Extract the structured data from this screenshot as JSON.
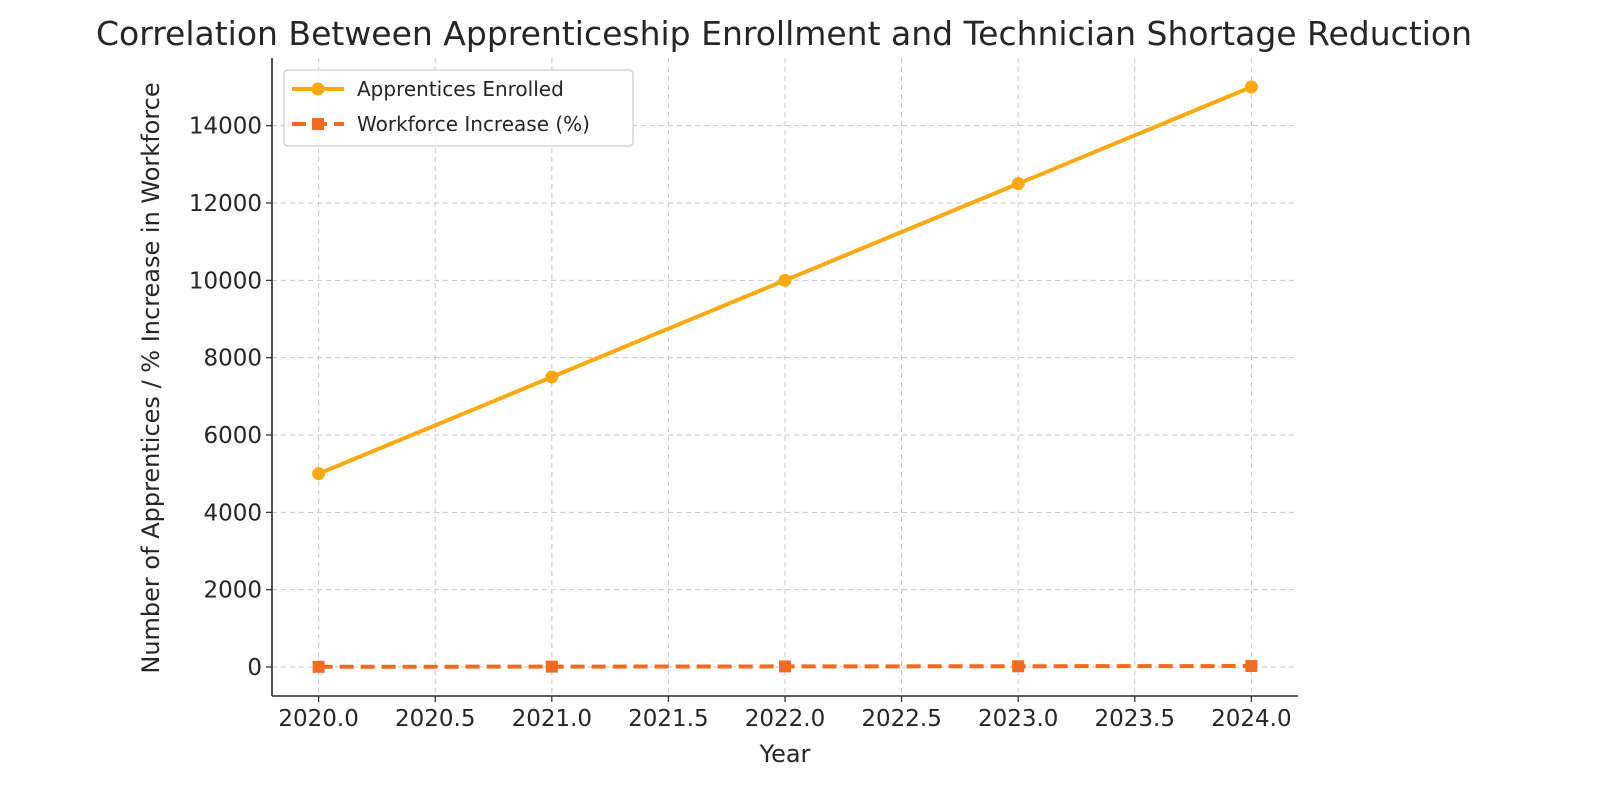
{
  "chart_data": {
    "type": "line",
    "title": "Correlation Between Apprenticeship Enrollment and Technician Shortage Reduction",
    "xlabel": "Year",
    "ylabel": "Number of Apprentices / % Increase in Workforce",
    "x": [
      2020,
      2021,
      2022,
      2023,
      2024
    ],
    "xlim": [
      2019.8,
      2024.2
    ],
    "ylim": [
      -750,
      15750
    ],
    "xticks": [
      "2020.0",
      "2020.5",
      "2021.0",
      "2021.5",
      "2022.0",
      "2022.5",
      "2023.0",
      "2023.5",
      "2024.0"
    ],
    "yticks": [
      "0",
      "2000",
      "4000",
      "6000",
      "8000",
      "10000",
      "12000",
      "14000"
    ],
    "grid": true,
    "legend_position": "top-left",
    "series": [
      {
        "name": "Apprentices Enrolled",
        "values": [
          5000,
          7500,
          10000,
          12500,
          15000
        ],
        "color": "#FBA90F",
        "line_style": "solid",
        "marker": "circle"
      },
      {
        "name": "Workforce Increase (%)",
        "values": [
          5,
          10,
          15,
          20,
          25
        ],
        "color": "#F26B21",
        "line_style": "dashed",
        "marker": "square"
      }
    ]
  }
}
